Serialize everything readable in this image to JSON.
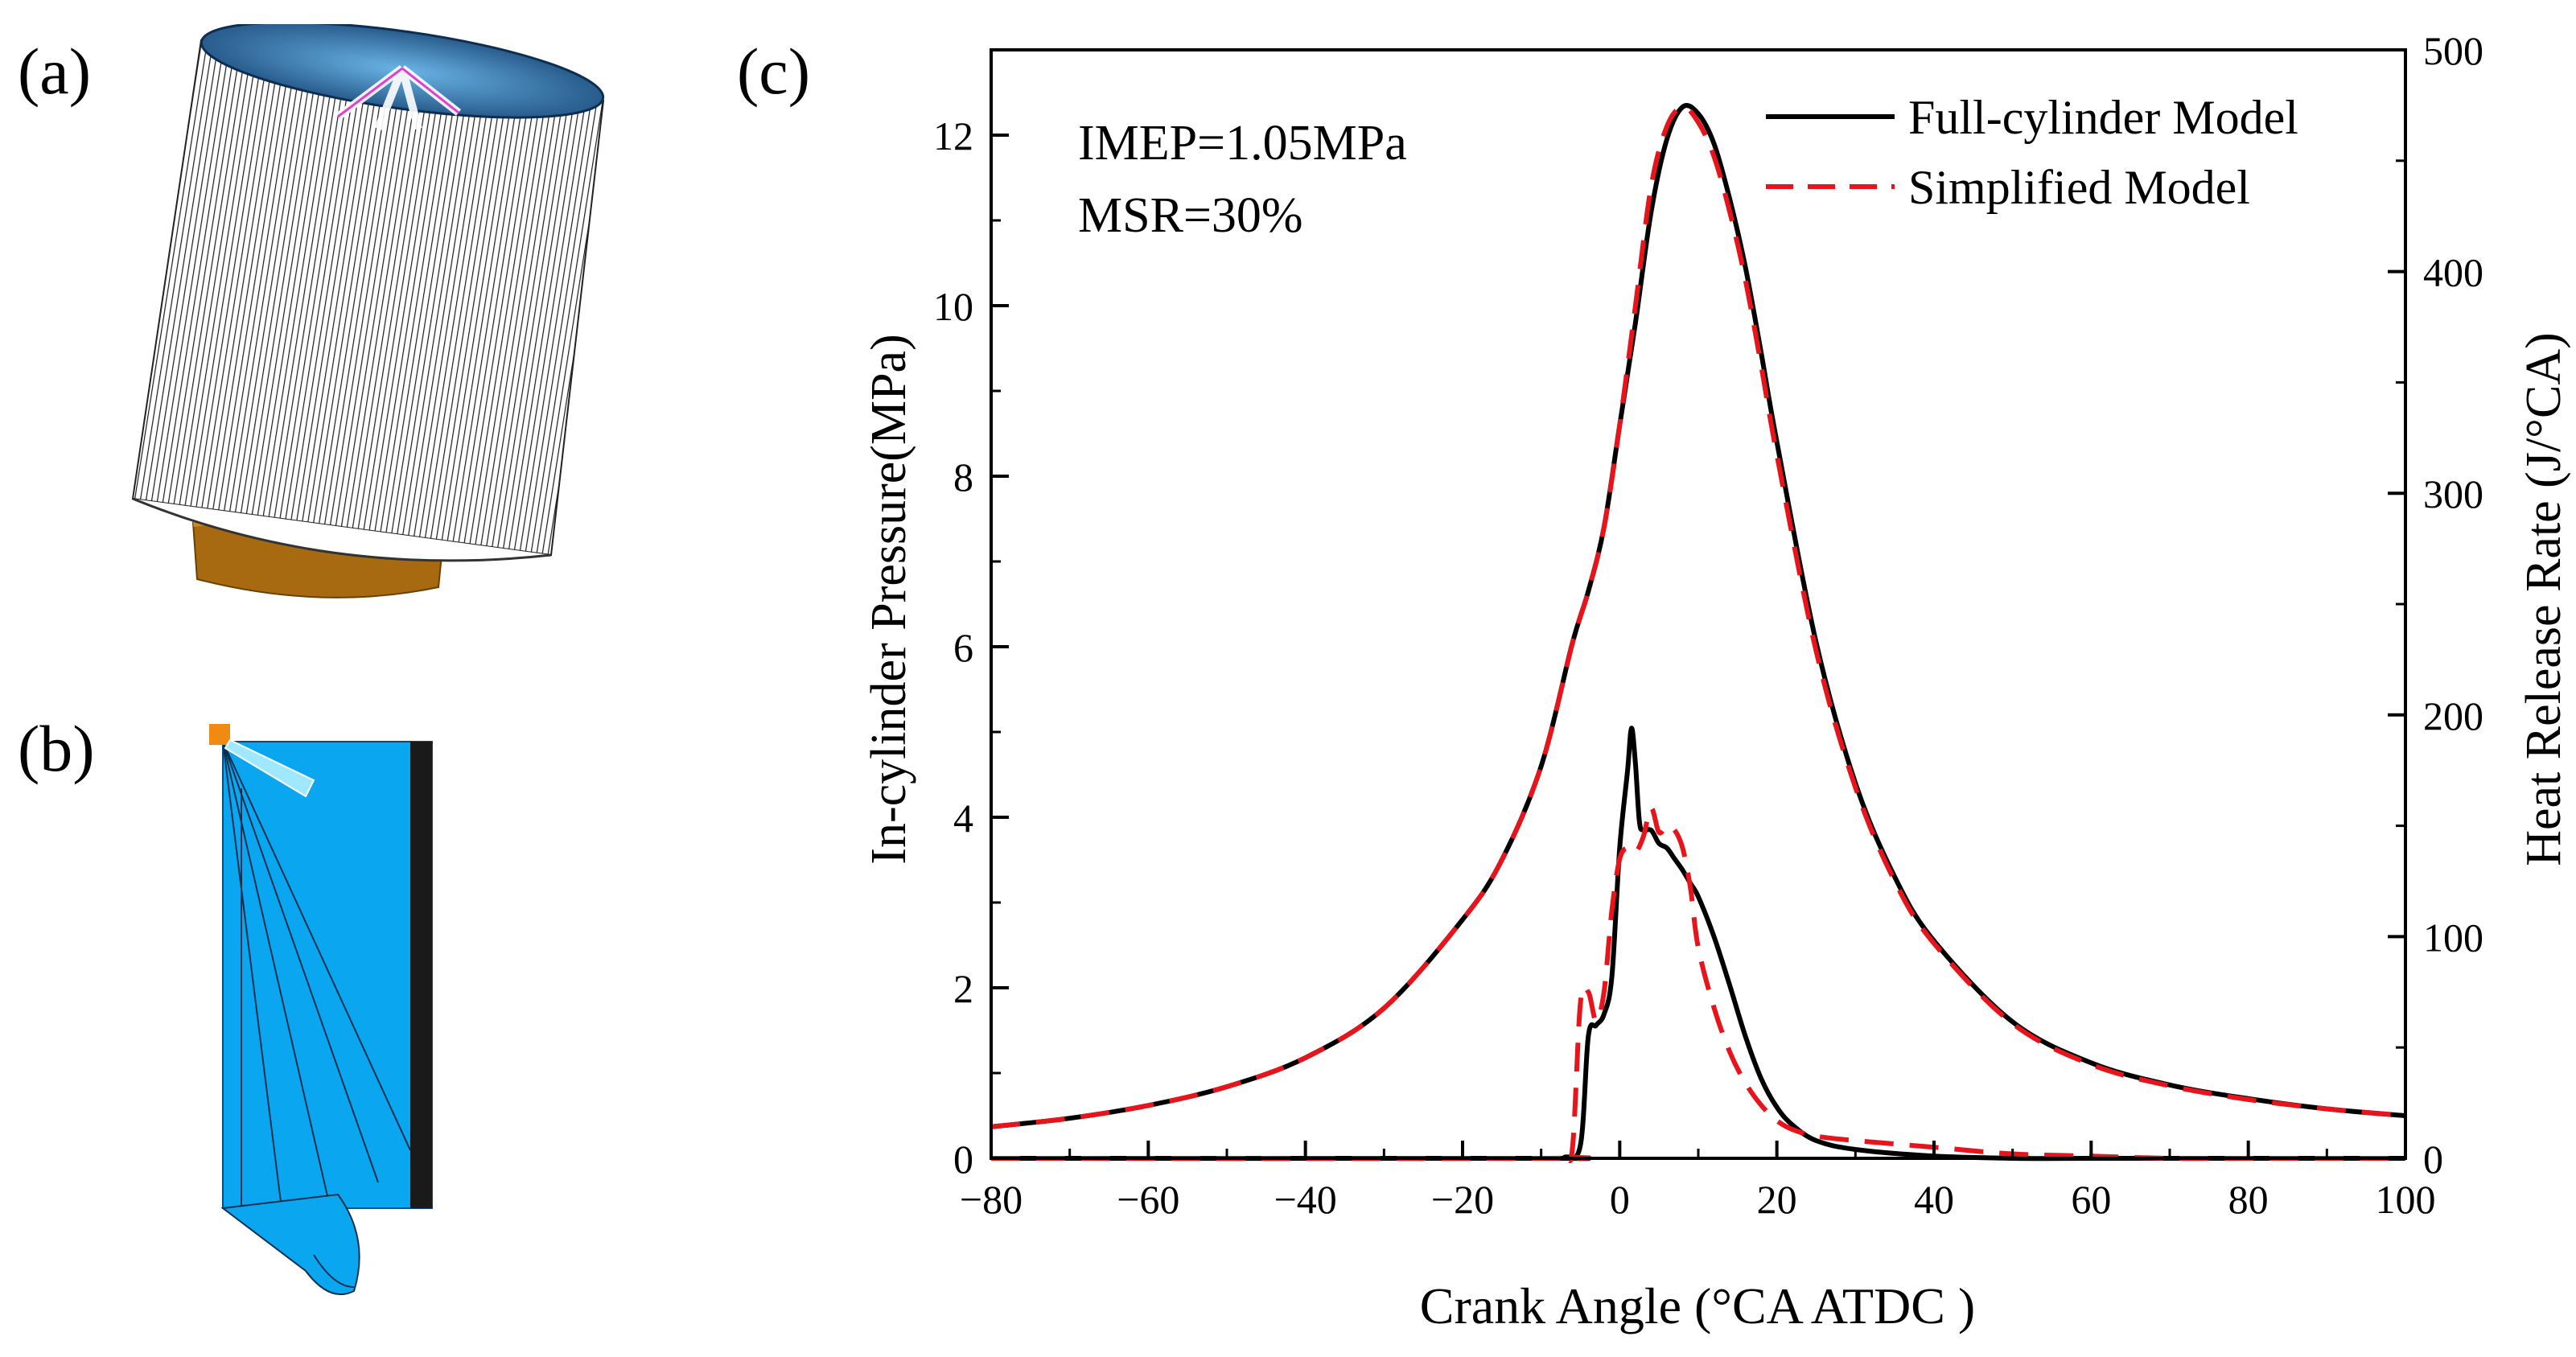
{
  "panels": {
    "a": {
      "label": "(a)",
      "description_icon": "full-cylinder-mesh"
    },
    "b": {
      "label": "(b)",
      "description_icon": "sector-mesh"
    },
    "c": {
      "label": "(c)"
    }
  },
  "chart_data": {
    "type": "line",
    "title": "",
    "xlabel": "Crank Angle (°CA  ATDC )",
    "ylabel_left": "In-cylinder Pressure(MPa)",
    "ylabel_right": "Heat Release Rate (J/°CA)",
    "xlim": [
      -80,
      100
    ],
    "ylim_left": [
      0,
      13
    ],
    "ylim_right": [
      0,
      500
    ],
    "x_ticks": [
      -80,
      -60,
      -40,
      -20,
      0,
      20,
      40,
      60,
      80,
      100
    ],
    "x_tick_labels": [
      "−80",
      "−60",
      "−40",
      "−20",
      "0",
      "20",
      "40",
      "60",
      "80",
      "100"
    ],
    "y_left_ticks": [
      0,
      2,
      4,
      6,
      8,
      10,
      12
    ],
    "y_left_tick_labels": [
      "0",
      "2",
      "4",
      "6",
      "8",
      "10",
      "12"
    ],
    "y_right_ticks": [
      0,
      100,
      200,
      300,
      400,
      500
    ],
    "y_right_tick_labels": [
      "0",
      "100",
      "200",
      "300",
      "400",
      "500"
    ],
    "annotations": [
      "IMEP=1.05MPa",
      "MSR=30%"
    ],
    "legend": {
      "position": "top-right",
      "entries": [
        "Full-cylinder Model",
        "Simplified Model"
      ]
    },
    "colors": {
      "full": "#000000",
      "simplified": "#e8141b"
    },
    "series": [
      {
        "name": "Full-cylinder Model",
        "quantity": "pressure",
        "axis": "left",
        "style": "solid",
        "x": [
          -80,
          -70,
          -60,
          -50,
          -40,
          -30,
          -20,
          -15,
          -10,
          -6,
          -4,
          -2,
          0,
          2,
          4,
          6,
          8,
          10,
          12,
          14,
          16,
          18,
          20,
          25,
          30,
          35,
          40,
          50,
          60,
          70,
          80,
          90,
          100
        ],
        "y": [
          0.37,
          0.47,
          0.62,
          0.84,
          1.18,
          1.76,
          2.8,
          3.5,
          4.6,
          6.05,
          6.65,
          7.4,
          8.6,
          9.8,
          11.1,
          11.95,
          12.33,
          12.25,
          11.9,
          11.25,
          10.45,
          9.45,
          8.4,
          6.05,
          4.4,
          3.3,
          2.55,
          1.6,
          1.12,
          0.86,
          0.7,
          0.58,
          0.5
        ]
      },
      {
        "name": "Simplified Model",
        "quantity": "pressure",
        "axis": "left",
        "style": "dashed",
        "x": [
          -80,
          -70,
          -60,
          -50,
          -40,
          -30,
          -20,
          -15,
          -10,
          -6,
          -4,
          -2,
          0,
          2,
          4,
          6,
          8,
          10,
          12,
          14,
          16,
          18,
          20,
          25,
          30,
          35,
          40,
          50,
          60,
          70,
          80,
          90,
          100
        ],
        "y": [
          0.37,
          0.47,
          0.62,
          0.84,
          1.18,
          1.76,
          2.8,
          3.5,
          4.6,
          6.05,
          6.65,
          7.4,
          8.6,
          10.0,
          11.4,
          12.1,
          12.33,
          12.15,
          11.75,
          11.1,
          10.3,
          9.3,
          8.25,
          5.95,
          4.35,
          3.25,
          2.52,
          1.58,
          1.1,
          0.85,
          0.69,
          0.58,
          0.5
        ]
      },
      {
        "name": "Full-cylinder Model",
        "quantity": "heat_release_rate",
        "axis": "right",
        "style": "solid",
        "x": [
          -80,
          -10,
          -7,
          -5,
          -4,
          -3,
          -2,
          -1,
          0,
          1,
          1.5,
          2,
          2.5,
          3,
          4,
          5,
          6,
          7,
          8,
          9,
          10,
          12,
          14,
          16,
          18,
          20,
          22,
          25,
          30,
          40,
          50,
          60,
          70,
          80,
          100
        ],
        "y": [
          0,
          0,
          0.5,
          6,
          55,
          60,
          65,
          82,
          140,
          175,
          194,
          178,
          152,
          148,
          148,
          142,
          140,
          135,
          130,
          124,
          118,
          100,
          78,
          55,
          36,
          23,
          15,
          8,
          4,
          1,
          0,
          0,
          0,
          0,
          0
        ]
      },
      {
        "name": "Simplified Model",
        "quantity": "heat_release_rate",
        "axis": "right",
        "style": "dashed",
        "x": [
          -80,
          -10,
          -7,
          -6,
          -5,
          -4,
          -3,
          -2,
          -1,
          0,
          1,
          2,
          3,
          4,
          5,
          6,
          7,
          8,
          9,
          10,
          12,
          14,
          16,
          18,
          20,
          22,
          25,
          30,
          40,
          50,
          60,
          70,
          80,
          100
        ],
        "y": [
          0,
          0,
          1,
          5,
          70,
          75,
          62,
          75,
          112,
          135,
          140,
          138,
          145,
          158,
          147,
          150,
          148,
          140,
          122,
          95,
          68,
          48,
          34,
          24,
          17,
          13,
          10,
          8,
          5,
          2,
          1,
          0,
          0,
          0
        ]
      }
    ]
  }
}
